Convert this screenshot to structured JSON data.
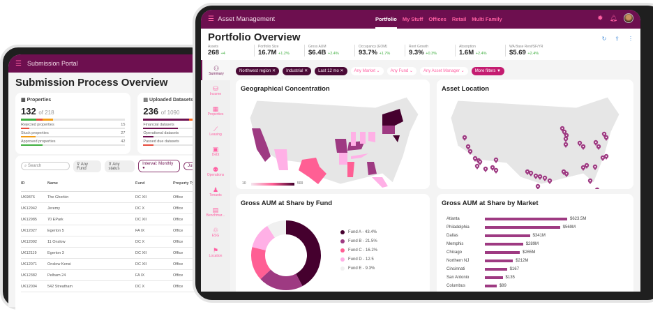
{
  "back": {
    "app_title": "Submission Portal",
    "page_title": "Submission Process Overview",
    "properties": {
      "title": "Properties",
      "count": "132",
      "of": "of 218",
      "rows": [
        {
          "label": "Rejected properties",
          "value": "15",
          "color": "#e74c3c"
        },
        {
          "label": "Stuck properties",
          "value": "27",
          "color": "#f39c12"
        },
        {
          "label": "Approved properties",
          "value": "42",
          "color": "#3fae3f"
        }
      ]
    },
    "datasets": {
      "title": "Uploaded Datasets",
      "count": "236",
      "of": "of 1090",
      "rows": [
        {
          "label": "Financial datasets"
        },
        {
          "label": "Operational datasets"
        },
        {
          "label": "Passed due datasets"
        }
      ]
    },
    "filters": {
      "search_placeholder": "Search",
      "fund": "Any Fund",
      "status": "Any status",
      "interval": "Interval: Monthly",
      "date": "June"
    },
    "columns": [
      "ID",
      "Name",
      "Fund",
      "Property Ty"
    ],
    "rows": [
      [
        "UK9876",
        "The Gherkin",
        "DC XII",
        "Office"
      ],
      [
        "UK12942",
        "Jeremy",
        "DC X",
        "Office"
      ],
      [
        "UK12985",
        "70 EPark",
        "DC XII",
        "Office"
      ],
      [
        "UK12027",
        "Egerton 5",
        "FA IX",
        "Office"
      ],
      [
        "UK12092",
        "11 Onslow",
        "DC X",
        "Office"
      ],
      [
        "UK12119",
        "Egerton 3",
        "DC XII",
        "Office"
      ],
      [
        "UK12071",
        "Onslow Kensi",
        "DC XII",
        "Office"
      ],
      [
        "UK12382",
        "Pelham 24",
        "FA IX",
        "Office"
      ],
      [
        "UK12004",
        "542 Streatham",
        "DC X",
        "Office"
      ]
    ]
  },
  "front": {
    "app_title": "Asset Management",
    "nav": [
      "Portfolio",
      "My Stuff",
      "Offices",
      "Retail",
      "Multi Family"
    ],
    "page_title": "Portfolio Overview",
    "kpis": [
      {
        "label": "Assets",
        "value": "268",
        "delta": "+4"
      },
      {
        "label": "Portfolio Size",
        "value": "16.7M",
        "delta": "+1.2%"
      },
      {
        "label": "Gross AUM",
        "value": "$6.4B",
        "delta": "+2.4%"
      },
      {
        "label": "Occupancy (EOM)",
        "value": "93.7%",
        "delta": "+1.7%"
      },
      {
        "label": "Rent Growth",
        "value": "9.3%",
        "delta": "+0.3%"
      },
      {
        "label": "Absorption",
        "value": "1.6M",
        "delta": "+2.4%"
      },
      {
        "label": "WA Base Rent/SF/YR",
        "value": "$5.69",
        "delta": "+2.4%"
      }
    ],
    "sidebar": [
      "Summary",
      "Income",
      "Properties",
      "Leasing",
      "Debt",
      "Operations",
      "Tenants",
      "Benchmar...",
      "ESG",
      "Location"
    ],
    "chips_active": [
      "Northwest region",
      "Industrial",
      "Last 12 mo"
    ],
    "chips_open": [
      "Any Market",
      "Any Fund",
      "Any Asset Manager"
    ],
    "more_filters": "More filters",
    "geo": {
      "title": "Geographical Concentration",
      "scale_min": "10",
      "scale_max": "500"
    },
    "asset_location": {
      "title": "Asset Location"
    }
  },
  "chart_data": [
    {
      "type": "pie",
      "title": "Gross AUM at Share by Fund",
      "labels": [
        "Fund A - 43.4%",
        "Fund B -  21.5%",
        "Fund C -  16.2%",
        "Fund D -  12.5",
        "Fund E - 9.3%"
      ],
      "values": [
        43.4,
        21.5,
        16.2,
        12.5,
        9.3
      ],
      "colors": [
        "#45002e",
        "#9e3a82",
        "#ff5f94",
        "#ffb0e6",
        "#f0f0f0"
      ]
    },
    {
      "type": "bar",
      "title": "Gross AUM at Share by Market",
      "categories": [
        "Atlanta",
        "Philadelphia",
        "Dallas",
        "Memphis",
        "Chicago",
        "Northern NJ",
        "Cincinnati",
        "San Antonio",
        "Columbus"
      ],
      "values": [
        623.5,
        569,
        341,
        289,
        265,
        212,
        167,
        135,
        89
      ],
      "labels": [
        "$623.5M",
        "$569M",
        "$341M",
        "$289M",
        "$265M",
        "$212M",
        "$167",
        "$135",
        "$89"
      ]
    }
  ]
}
